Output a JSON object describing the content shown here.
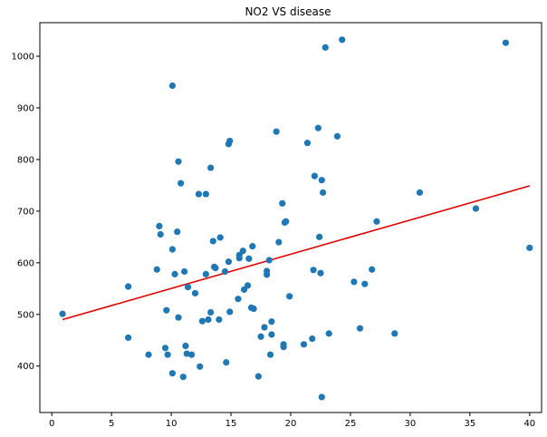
{
  "chart_data": {
    "type": "scatter",
    "title": "NO2 VS disease",
    "xlabel": "",
    "ylabel": "",
    "xlim": [
      -1,
      41
    ],
    "ylim": [
      310,
      1065
    ],
    "x_ticks": [
      0,
      5,
      10,
      15,
      20,
      25,
      30,
      35,
      40
    ],
    "y_ticks": [
      400,
      500,
      600,
      700,
      800,
      900,
      1000
    ],
    "grid": false,
    "legend": "none",
    "series": [
      {
        "kind": "points",
        "color": "#1f77b4",
        "points": [
          [
            0.9,
            501
          ],
          [
            6.4,
            554
          ],
          [
            6.4,
            455
          ],
          [
            8.1,
            422
          ],
          [
            8.8,
            587
          ],
          [
            9.0,
            671
          ],
          [
            9.1,
            655
          ],
          [
            9.5,
            435
          ],
          [
            9.6,
            508
          ],
          [
            9.7,
            422
          ],
          [
            10.1,
            943
          ],
          [
            10.1,
            386
          ],
          [
            10.1,
            626
          ],
          [
            10.3,
            578
          ],
          [
            10.5,
            660
          ],
          [
            10.6,
            796
          ],
          [
            10.6,
            494
          ],
          [
            10.8,
            754
          ],
          [
            11.0,
            379
          ],
          [
            11.1,
            583
          ],
          [
            11.2,
            439
          ],
          [
            11.3,
            424
          ],
          [
            11.4,
            553
          ],
          [
            11.7,
            422
          ],
          [
            12.0,
            541
          ],
          [
            12.3,
            733
          ],
          [
            12.4,
            399
          ],
          [
            12.6,
            487
          ],
          [
            12.9,
            578
          ],
          [
            12.9,
            733
          ],
          [
            13.1,
            490
          ],
          [
            13.3,
            784
          ],
          [
            13.3,
            504
          ],
          [
            13.5,
            642
          ],
          [
            13.6,
            592
          ],
          [
            13.7,
            590
          ],
          [
            14.0,
            490
          ],
          [
            14.1,
            649
          ],
          [
            14.5,
            583
          ],
          [
            14.6,
            407
          ],
          [
            14.8,
            602
          ],
          [
            14.8,
            830
          ],
          [
            14.9,
            836
          ],
          [
            14.9,
            505
          ],
          [
            15.6,
            530
          ],
          [
            15.7,
            615
          ],
          [
            15.7,
            609
          ],
          [
            16.0,
            623
          ],
          [
            16.1,
            548
          ],
          [
            16.4,
            556
          ],
          [
            16.5,
            608
          ],
          [
            16.7,
            513
          ],
          [
            16.8,
            632
          ],
          [
            16.9,
            511
          ],
          [
            17.3,
            380
          ],
          [
            17.5,
            457
          ],
          [
            17.8,
            475
          ],
          [
            18.0,
            584
          ],
          [
            18.0,
            577
          ],
          [
            18.2,
            605
          ],
          [
            18.3,
            422
          ],
          [
            18.4,
            461
          ],
          [
            18.4,
            486
          ],
          [
            18.8,
            854
          ],
          [
            19.0,
            640
          ],
          [
            19.3,
            715
          ],
          [
            19.4,
            442
          ],
          [
            19.4,
            437
          ],
          [
            19.5,
            678
          ],
          [
            19.6,
            680
          ],
          [
            19.9,
            535
          ],
          [
            21.1,
            442
          ],
          [
            21.4,
            832
          ],
          [
            21.8,
            453
          ],
          [
            21.9,
            586
          ],
          [
            22.0,
            768
          ],
          [
            22.3,
            861
          ],
          [
            22.4,
            650
          ],
          [
            22.5,
            580
          ],
          [
            22.6,
            760
          ],
          [
            22.6,
            340
          ],
          [
            22.7,
            736
          ],
          [
            22.9,
            1017
          ],
          [
            23.2,
            463
          ],
          [
            23.9,
            845
          ],
          [
            24.3,
            1032
          ],
          [
            25.3,
            563
          ],
          [
            25.8,
            473
          ],
          [
            26.2,
            559
          ],
          [
            26.8,
            587
          ],
          [
            27.2,
            680
          ],
          [
            28.7,
            463
          ],
          [
            30.8,
            736
          ],
          [
            35.5,
            705
          ],
          [
            38.0,
            1026
          ],
          [
            40.0,
            629
          ]
        ]
      },
      {
        "kind": "regression-line",
        "color": "#e00000",
        "x": [
          0.9,
          40.0
        ],
        "y": [
          490,
          749
        ]
      }
    ]
  }
}
